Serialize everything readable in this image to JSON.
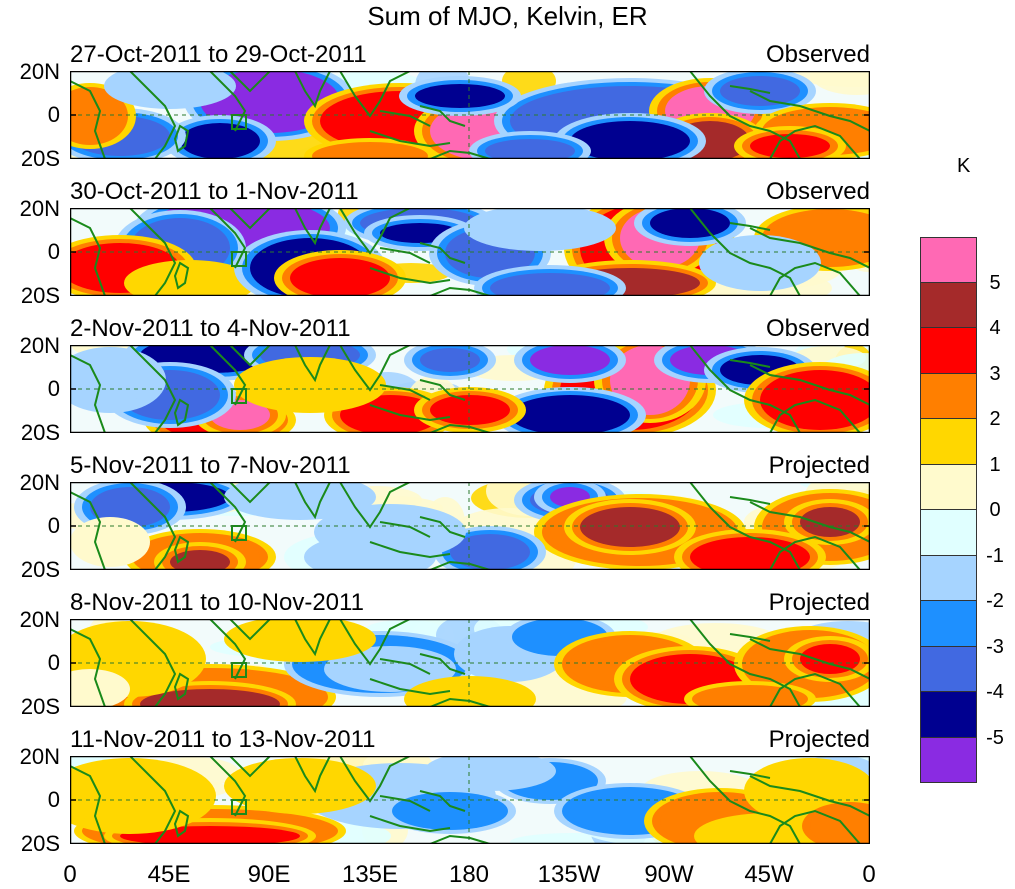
{
  "title": "Sum of MJO, Kelvin, ER",
  "unit": "K",
  "y_labels": [
    "20N",
    "0",
    "20S"
  ],
  "x_labels": [
    "0",
    "45E",
    "90E",
    "135E",
    "180",
    "135W",
    "90W",
    "45W",
    "0"
  ],
  "panels": [
    {
      "date": "27-Oct-2011 to 29-Oct-2011",
      "status": "Observed"
    },
    {
      "date": "30-Oct-2011 to 1-Nov-2011",
      "status": "Observed"
    },
    {
      "date": "2-Nov-2011 to 4-Nov-2011",
      "status": "Observed"
    },
    {
      "date": "5-Nov-2011 to 7-Nov-2011",
      "status": "Projected"
    },
    {
      "date": "8-Nov-2011 to 10-Nov-2011",
      "status": "Projected"
    },
    {
      "date": "11-Nov-2011 to 13-Nov-2011",
      "status": "Projected"
    }
  ],
  "colorbar": {
    "labels": [
      "5",
      "4",
      "3",
      "2",
      "1",
      "0",
      "-1",
      "-2",
      "-3",
      "-4",
      "-5"
    ],
    "colors": [
      "#ff69b4",
      "#a52a2a",
      "#ff0000",
      "#ff7f00",
      "#ffd700",
      "#fffacd",
      "#e0ffff",
      "#a6d4ff",
      "#1e90ff",
      "#4169e1",
      "#000090",
      "#8a2be2"
    ]
  },
  "colors": {
    "coast": "#1a8a1a",
    "ocean_bg": "#f2fbfb"
  }
}
